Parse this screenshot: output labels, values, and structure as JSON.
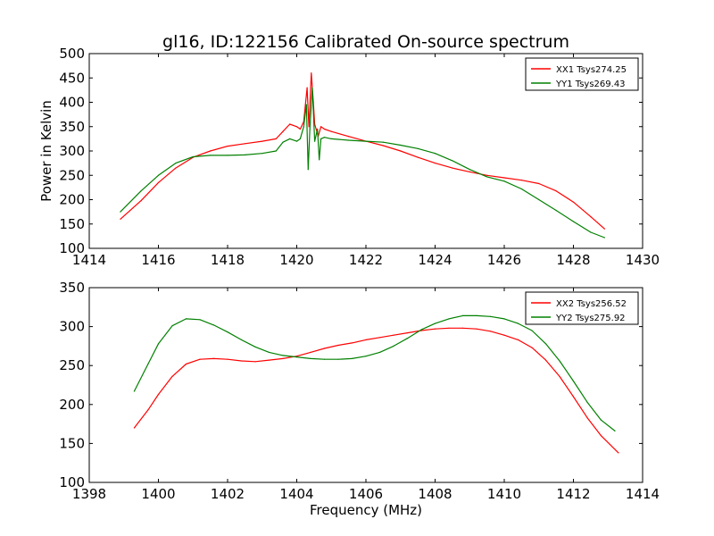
{
  "chart_data": [
    {
      "type": "line",
      "title": "gl16, ID:122156 Calibrated On-source spectrum",
      "xlabel": "",
      "ylabel": "Power in Kelvin",
      "xlim": [
        1414,
        1430
      ],
      "ylim": [
        100,
        500
      ],
      "xticks": [
        "1414",
        "1416",
        "1418",
        "1420",
        "1422",
        "1424",
        "1426",
        "1428",
        "1430"
      ],
      "yticks": [
        "100",
        "150",
        "200",
        "250",
        "300",
        "350",
        "400",
        "450",
        "500"
      ],
      "legend_position": "top-right",
      "series": [
        {
          "name": "XX1 Tsys274.25",
          "color": "#ff0000",
          "x": [
            1414.9,
            1415.5,
            1416.0,
            1416.5,
            1417.0,
            1417.5,
            1418.0,
            1418.5,
            1419.0,
            1419.4,
            1419.6,
            1419.8,
            1420.0,
            1420.1,
            1420.2,
            1420.25,
            1420.3,
            1420.35,
            1420.42,
            1420.48,
            1420.52,
            1420.56,
            1420.62,
            1420.7,
            1420.8,
            1421.0,
            1421.5,
            1422.0,
            1422.5,
            1423.0,
            1423.5,
            1424.0,
            1424.5,
            1425.0,
            1425.5,
            1426.0,
            1426.5,
            1427.0,
            1427.5,
            1428.0,
            1428.5,
            1428.9
          ],
          "y": [
            160,
            198,
            235,
            265,
            287,
            300,
            310,
            315,
            320,
            325,
            340,
            355,
            350,
            345,
            360,
            395,
            430,
            350,
            460,
            400,
            355,
            345,
            330,
            350,
            345,
            340,
            330,
            320,
            311,
            300,
            287,
            275,
            265,
            257,
            250,
            245,
            240,
            233,
            218,
            195,
            165,
            140
          ]
        },
        {
          "name": "YY1 Tsys269.43",
          "color": "#008000",
          "x": [
            1414.9,
            1415.5,
            1416.0,
            1416.5,
            1417.0,
            1417.5,
            1418.0,
            1418.5,
            1419.0,
            1419.4,
            1419.6,
            1419.8,
            1420.0,
            1420.1,
            1420.2,
            1420.28,
            1420.33,
            1420.38,
            1420.45,
            1420.52,
            1420.6,
            1420.65,
            1420.7,
            1420.8,
            1421.0,
            1421.5,
            1422.0,
            1422.5,
            1423.0,
            1423.5,
            1424.0,
            1424.5,
            1425.0,
            1425.5,
            1426.0,
            1426.5,
            1427.0,
            1427.5,
            1428.0,
            1428.5,
            1428.9
          ],
          "y": [
            175,
            218,
            250,
            275,
            288,
            291,
            291,
            292,
            295,
            300,
            318,
            325,
            320,
            325,
            350,
            395,
            262,
            345,
            430,
            320,
            345,
            282,
            325,
            328,
            325,
            322,
            320,
            318,
            312,
            305,
            295,
            280,
            262,
            247,
            238,
            222,
            200,
            178,
            155,
            133,
            122
          ]
        }
      ]
    },
    {
      "type": "line",
      "title": "",
      "xlabel": "Frequency (MHz)",
      "ylabel": "",
      "xlim": [
        1398,
        1414
      ],
      "ylim": [
        100,
        350
      ],
      "xticks": [
        "1398",
        "1400",
        "1402",
        "1404",
        "1406",
        "1408",
        "1410",
        "1412",
        "1414"
      ],
      "yticks": [
        "100",
        "150",
        "200",
        "250",
        "300",
        "350"
      ],
      "legend_position": "top-right",
      "series": [
        {
          "name": "XX2 Tsys256.52",
          "color": "#ff0000",
          "x": [
            1399.3,
            1399.7,
            1400.0,
            1400.4,
            1400.8,
            1401.2,
            1401.6,
            1402.0,
            1402.4,
            1402.8,
            1403.2,
            1403.6,
            1404.0,
            1404.4,
            1404.8,
            1405.2,
            1405.6,
            1406.0,
            1406.4,
            1406.8,
            1407.2,
            1407.6,
            1408.0,
            1408.4,
            1408.8,
            1409.2,
            1409.6,
            1410.0,
            1410.4,
            1410.8,
            1411.2,
            1411.6,
            1412.0,
            1412.4,
            1412.8,
            1413.3
          ],
          "y": [
            170,
            193,
            213,
            236,
            252,
            258,
            259,
            258,
            256,
            255,
            257,
            259,
            262,
            267,
            272,
            276,
            279,
            283,
            286,
            289,
            292,
            295,
            297,
            298,
            298,
            297,
            294,
            289,
            283,
            273,
            257,
            236,
            210,
            183,
            160,
            138
          ]
        },
        {
          "name": "YY2 Tsys275.92",
          "color": "#008000",
          "x": [
            1399.3,
            1399.7,
            1400.0,
            1400.4,
            1400.8,
            1401.2,
            1401.6,
            1402.0,
            1402.4,
            1402.8,
            1403.2,
            1403.6,
            1404.0,
            1404.4,
            1404.8,
            1405.2,
            1405.6,
            1406.0,
            1406.4,
            1406.8,
            1407.2,
            1407.6,
            1408.0,
            1408.4,
            1408.8,
            1409.2,
            1409.6,
            1410.0,
            1410.4,
            1410.8,
            1411.2,
            1411.6,
            1412.0,
            1412.4,
            1412.8,
            1413.2
          ],
          "y": [
            217,
            252,
            278,
            301,
            310,
            309,
            302,
            293,
            283,
            274,
            267,
            263,
            261,
            259,
            258,
            258,
            259,
            262,
            267,
            275,
            285,
            296,
            304,
            310,
            314,
            314,
            313,
            310,
            304,
            295,
            278,
            256,
            230,
            203,
            180,
            166
          ]
        }
      ]
    }
  ]
}
